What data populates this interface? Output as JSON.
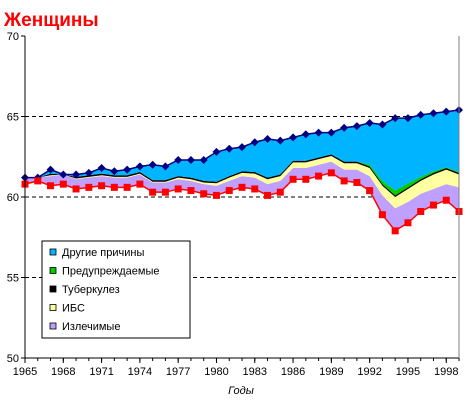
{
  "chart_data": {
    "type": "area",
    "title": "Женщины",
    "xlabel": "Годы",
    "ylabel": "",
    "xlim": [
      1965,
      1999
    ],
    "ylim": [
      50,
      70
    ],
    "yticks": [
      50,
      55,
      60,
      65,
      70
    ],
    "xticks": [
      1965,
      1968,
      1971,
      1974,
      1977,
      1980,
      1983,
      1986,
      1989,
      1992,
      1995,
      1998
    ],
    "grid": "horizontal dashed at 55, 60, 65",
    "legend_position": "lower-left",
    "x": [
      1965,
      1966,
      1967,
      1968,
      1969,
      1970,
      1971,
      1972,
      1973,
      1974,
      1975,
      1976,
      1977,
      1978,
      1979,
      1980,
      1981,
      1982,
      1983,
      1984,
      1985,
      1986,
      1987,
      1988,
      1989,
      1990,
      1991,
      1992,
      1993,
      1994,
      1995,
      1996,
      1997,
      1998,
      1999
    ],
    "lower_line": {
      "name": "",
      "color": "#ff0000",
      "marker_color": "#ff0000",
      "values": [
        60.8,
        61.0,
        60.7,
        60.8,
        60.5,
        60.6,
        60.7,
        60.6,
        60.6,
        60.8,
        60.3,
        60.3,
        60.5,
        60.4,
        60.2,
        60.1,
        60.4,
        60.6,
        60.5,
        60.1,
        60.3,
        61.1,
        61.1,
        61.3,
        61.5,
        61.0,
        60.9,
        60.4,
        58.9,
        57.9,
        58.4,
        59.1,
        59.5,
        59.8,
        59.1
      ]
    },
    "upper_line": {
      "name": "",
      "color": "#000080",
      "marker_color": "#000080",
      "values": [
        61.2,
        61.2,
        61.7,
        61.4,
        61.4,
        61.5,
        61.8,
        61.6,
        61.7,
        61.9,
        62.0,
        61.9,
        62.3,
        62.3,
        62.3,
        62.8,
        63.0,
        63.1,
        63.4,
        63.6,
        63.5,
        63.7,
        63.9,
        64.0,
        64.0,
        64.3,
        64.4,
        64.6,
        64.5,
        64.9,
        64.9,
        65.1,
        65.2,
        65.3,
        65.4
      ]
    },
    "series": [
      {
        "name": "Излечимые",
        "color": "#c0a0ff",
        "values": [
          0.6,
          0.6,
          0.6,
          0.6,
          0.6,
          0.6,
          0.6,
          0.6,
          0.6,
          0.6,
          0.6,
          0.6,
          0.6,
          0.6,
          0.6,
          0.6,
          0.6,
          0.7,
          0.7,
          0.7,
          0.7,
          0.7,
          0.7,
          0.7,
          0.7,
          0.7,
          0.8,
          0.9,
          1.2,
          1.4,
          1.3,
          1.1,
          1.0,
          1.0,
          1.5
        ]
      },
      {
        "name": "ИБС",
        "color": "#ffffa0",
        "values": [
          0.05,
          0.05,
          0.05,
          0.05,
          0.05,
          0.05,
          0.05,
          0.05,
          0.05,
          0.05,
          0.05,
          0.05,
          0.1,
          0.1,
          0.1,
          0.15,
          0.2,
          0.2,
          0.25,
          0.3,
          0.3,
          0.35,
          0.35,
          0.35,
          0.35,
          0.4,
          0.4,
          0.5,
          0.6,
          0.7,
          0.8,
          0.8,
          0.9,
          0.9,
          0.8
        ]
      },
      {
        "name": "Туберкулез",
        "color": "#000000",
        "values": [
          0.1,
          0.1,
          0.1,
          0.1,
          0.1,
          0.1,
          0.1,
          0.1,
          0.1,
          0.1,
          0.1,
          0.1,
          0.1,
          0.1,
          0.1,
          0.1,
          0.1,
          0.1,
          0.1,
          0.1,
          0.1,
          0.1,
          0.1,
          0.1,
          0.1,
          0.1,
          0.1,
          0.1,
          0.1,
          0.1,
          0.1,
          0.1,
          0.1,
          0.1,
          0.1
        ]
      },
      {
        "name": "Предупреждаемые",
        "color": "#00cc00",
        "values": [
          0,
          0,
          0,
          0,
          0,
          0,
          0,
          0,
          0,
          0,
          0,
          0,
          0,
          0,
          0,
          0,
          0,
          0,
          0,
          0,
          0,
          0,
          0,
          0,
          0,
          0,
          0,
          0.1,
          0.2,
          0.3,
          0.25,
          0.15,
          0.1,
          0.05,
          0.05
        ]
      },
      {
        "name": "Другие причины",
        "color": "#00b4ff",
        "values": "remainder up to upper_line"
      }
    ],
    "legend": [
      "Другие причины",
      "Предупреждаемые",
      "Туберкулез",
      "ИБС",
      "Излечимые"
    ],
    "colors": {
      "other": "#00b4ff",
      "preventable": "#00cc00",
      "tb": "#000000",
      "ihd": "#ffffa0",
      "curable": "#c0a0ff",
      "red_line": "#ff0000",
      "blue_line": "#000080"
    }
  }
}
